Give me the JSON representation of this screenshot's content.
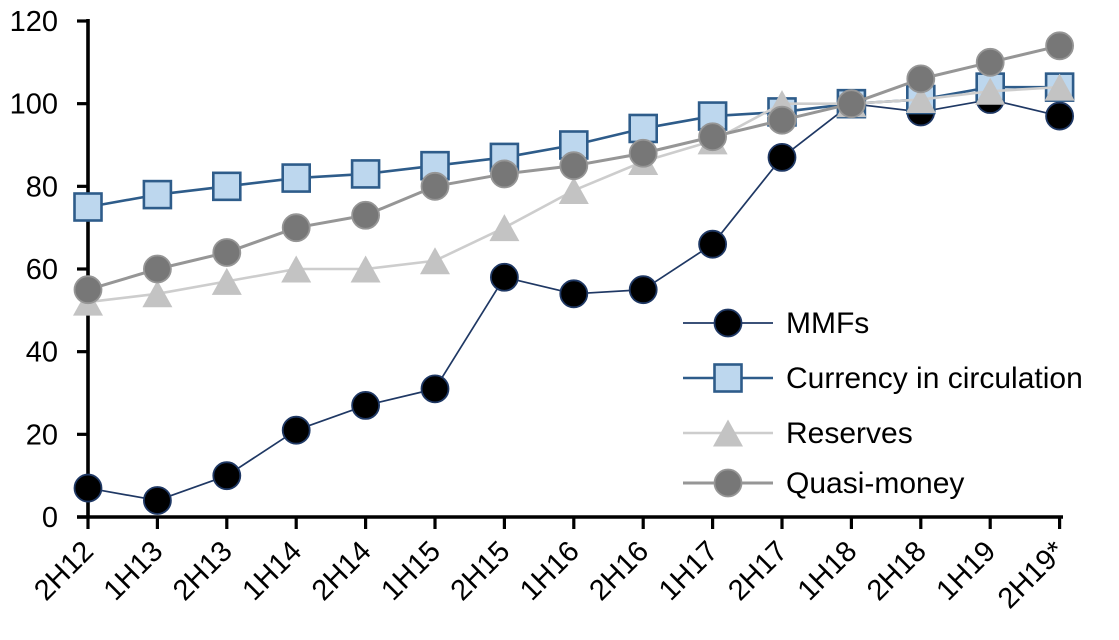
{
  "chart_data": {
    "type": "line",
    "title": "",
    "categories": [
      "2H12",
      "1H13",
      "2H13",
      "1H14",
      "2H14",
      "1H15",
      "2H15",
      "1H16",
      "2H16",
      "1H17",
      "2H17",
      "1H18",
      "2H18",
      "1H19",
      "2H19*"
    ],
    "y_axis": {
      "min": 0,
      "max": 120,
      "tick_interval": 20,
      "tick_labels": [
        "0",
        "20",
        "40",
        "60",
        "80",
        "100",
        "120"
      ]
    },
    "grid": false,
    "legend": {
      "position": "inside-right"
    },
    "series": [
      {
        "name": "MMFs",
        "marker": "circle",
        "marker_fill": "#000000",
        "color": "#1F3864",
        "line_width": 1.7,
        "values": [
          7,
          4,
          10,
          21,
          27,
          31,
          58,
          54,
          55,
          66,
          87,
          100,
          98,
          101,
          97
        ]
      },
      {
        "name": "Currency in circulation",
        "marker": "square",
        "marker_fill": "#BDD7EE",
        "color": "#2E5C8A",
        "line_width": 2.6,
        "values": [
          75,
          78,
          80,
          82,
          83,
          85,
          87,
          90,
          94,
          97,
          98,
          100,
          101,
          104,
          104
        ]
      },
      {
        "name": "Reserves",
        "marker": "triangle",
        "marker_fill": "#C3C3C3",
        "color": "#CDCDCD",
        "line_width": 2.6,
        "values": [
          52,
          54,
          57,
          60,
          60,
          62,
          70,
          79,
          86,
          91,
          100,
          100,
          101,
          103,
          104
        ]
      },
      {
        "name": "Quasi-money",
        "marker": "circle",
        "marker_fill": "#777777",
        "color": "#969696",
        "line_width": 3,
        "values": [
          55,
          60,
          64,
          70,
          73,
          80,
          83,
          85,
          88,
          92,
          96,
          100,
          106,
          110,
          114
        ]
      }
    ]
  }
}
